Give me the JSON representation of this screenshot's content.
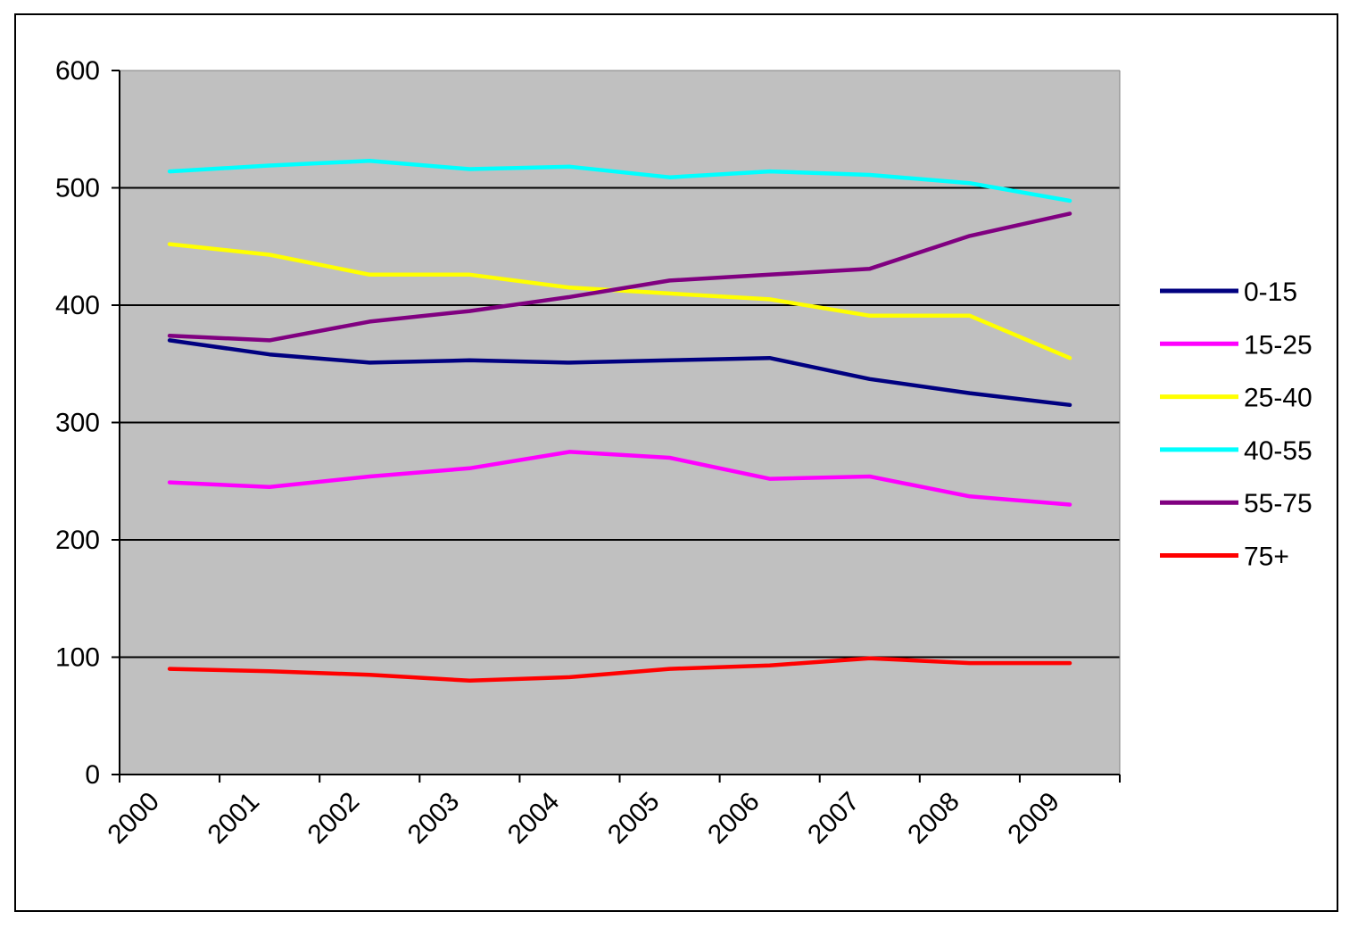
{
  "chart_data": {
    "type": "line",
    "title": "",
    "xlabel": "",
    "ylabel": "",
    "categories": [
      "2000",
      "2001",
      "2002",
      "2003",
      "2004",
      "2005",
      "2006",
      "2007",
      "2008",
      "2009"
    ],
    "ylim": [
      0,
      600
    ],
    "yticks": [
      0,
      100,
      200,
      300,
      400,
      500,
      600
    ],
    "grid": "horizontal major gridlines",
    "plot_background": "#c0c0c0",
    "legend": "right",
    "series": [
      {
        "name": "0-15",
        "color": "#000080",
        "values": [
          370,
          358,
          351,
          353,
          351,
          353,
          355,
          337,
          325,
          315
        ]
      },
      {
        "name": "15-25",
        "color": "#ff00ff",
        "values": [
          249,
          245,
          254,
          261,
          275,
          270,
          252,
          254,
          237,
          230
        ]
      },
      {
        "name": "25-40",
        "color": "#ffff00",
        "values": [
          452,
          443,
          426,
          426,
          415,
          410,
          405,
          391,
          391,
          355
        ]
      },
      {
        "name": "40-55",
        "color": "#00ffff",
        "values": [
          514,
          519,
          523,
          516,
          518,
          509,
          514,
          511,
          504,
          489
        ]
      },
      {
        "name": "55-75",
        "color": "#800080",
        "values": [
          374,
          370,
          386,
          395,
          407,
          421,
          426,
          431,
          459,
          478
        ]
      },
      {
        "name": "75+",
        "color": "#ff0000",
        "values": [
          90,
          88,
          85,
          80,
          83,
          90,
          93,
          99,
          95,
          95
        ]
      }
    ]
  }
}
